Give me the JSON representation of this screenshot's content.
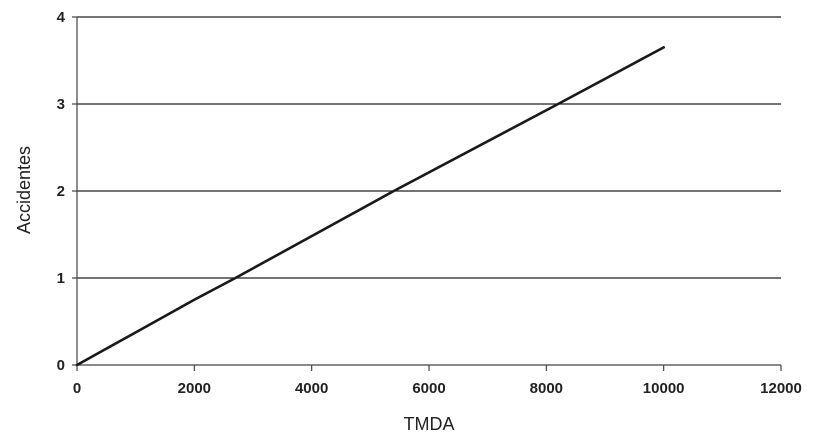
{
  "chart_data": {
    "type": "line",
    "title": "",
    "xlabel": "TMDA",
    "ylabel": "Accidentes",
    "xlim": [
      0,
      12000
    ],
    "ylim": [
      0,
      4
    ],
    "xticks": [
      0,
      2000,
      4000,
      6000,
      8000,
      10000,
      12000
    ],
    "yticks": [
      0,
      1,
      2,
      3,
      4
    ],
    "grid": {
      "x": false,
      "y": true
    },
    "series": [
      {
        "x": [
          0,
          2000,
          2700,
          5400,
          8200,
          10000
        ],
        "y": [
          0,
          0.75,
          1.0,
          2.0,
          3.0,
          3.65
        ],
        "color": "#1a1a1a"
      }
    ],
    "colors": {
      "axis": "#444444",
      "grid": "#222222",
      "line": "#1a1a1a"
    }
  }
}
